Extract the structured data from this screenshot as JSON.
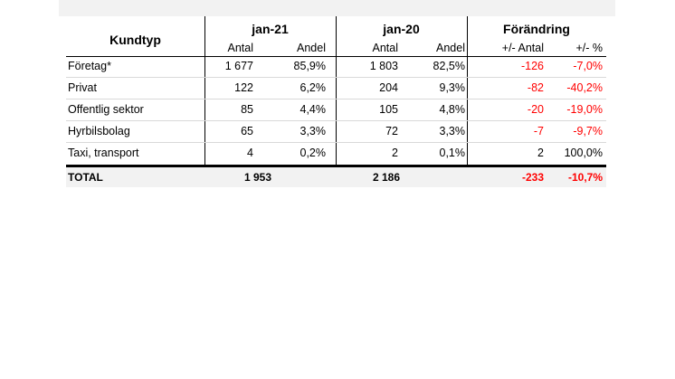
{
  "table": {
    "header": {
      "kundtyp": "Kundtyp",
      "groups": [
        "jan-21",
        "jan-20",
        "Förändring"
      ],
      "subheaders": [
        "Antal",
        "Andel",
        "Antal",
        "Andel",
        "+/- Antal",
        "+/- %"
      ]
    },
    "rows": [
      {
        "label": "Företag*",
        "a21": "1 677",
        "p21": "85,9%",
        "a20": "1 803",
        "p20": "82,5%",
        "d": "-126",
        "dp": "-7,0%",
        "neg": true
      },
      {
        "label": "Privat",
        "a21": "122",
        "p21": "6,2%",
        "a20": "204",
        "p20": "9,3%",
        "d": "-82",
        "dp": "-40,2%",
        "neg": true
      },
      {
        "label": "Offentlig sektor",
        "a21": "85",
        "p21": "4,4%",
        "a20": "105",
        "p20": "4,8%",
        "d": "-20",
        "dp": "-19,0%",
        "neg": true
      },
      {
        "label": "Hyrbilsbolag",
        "a21": "65",
        "p21": "3,3%",
        "a20": "72",
        "p20": "3,3%",
        "d": "-7",
        "dp": "-9,7%",
        "neg": true
      },
      {
        "label": "Taxi, transport",
        "a21": "4",
        "p21": "0,2%",
        "a20": "2",
        "p20": "0,1%",
        "d": "2",
        "dp": "100,0%",
        "neg": false
      }
    ],
    "total": {
      "label": "TOTAL",
      "a21": "1 953",
      "a20": "2 186",
      "d": "-233",
      "dp": "-10,7%"
    },
    "colors": {
      "negative": "#ff0000",
      "band": "#f2f2f2"
    }
  }
}
